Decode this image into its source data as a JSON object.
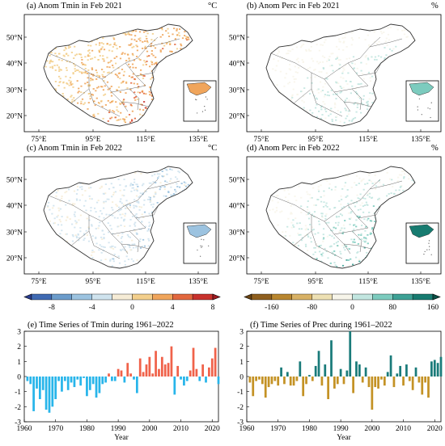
{
  "maps": [
    {
      "id": "a",
      "title": "(a) Anom Tmin in Feb 2021",
      "unit": "°C",
      "palette": "temp",
      "intensity": 0.75
    },
    {
      "id": "b",
      "title": "(b) Anom Perc in Feb 2021",
      "unit": "%",
      "palette": "prec",
      "intensity": 0.35
    },
    {
      "id": "c",
      "title": "(c) Anom Tmin in Feb 2022",
      "unit": "°C",
      "palette": "temp",
      "intensity": -0.2
    },
    {
      "id": "d",
      "title": "(d) Anom Perc in Feb 2022",
      "unit": "%",
      "palette": "prec",
      "intensity": 0.7
    }
  ],
  "map_axes": {
    "lat_ticks": [
      "50°N",
      "40°N",
      "30°N",
      "20°N"
    ],
    "lon_ticks": [
      "75°E",
      "95°E",
      "115°E",
      "135°E"
    ]
  },
  "colorbars": [
    {
      "id": "temp",
      "ticks": [
        "-8",
        "-4",
        "0",
        "4",
        "8"
      ],
      "colors": [
        "#2a3d8f",
        "#3f6ab3",
        "#6b9ccb",
        "#9cc3e0",
        "#cfe3ee",
        "#f6ecd6",
        "#f3cf8c",
        "#f0a55b",
        "#e2673e",
        "#c8312c",
        "#9e1b21"
      ]
    },
    {
      "id": "prec",
      "ticks": [
        "-160",
        "-80",
        "0",
        "80",
        "160"
      ],
      "colors": [
        "#6b4413",
        "#8f5f1e",
        "#b8862f",
        "#d8b165",
        "#ede0b3",
        "#f7f5ea",
        "#c2e6e0",
        "#7ccbbe",
        "#3da195",
        "#177b70",
        "#0b4f45"
      ]
    }
  ],
  "chart_data": [
    {
      "type": "bar",
      "title": "(e) Time Series of Tmin during 1961–2022",
      "xlabel": "Year",
      "ylabel": "",
      "ylim": [
        -3,
        3
      ],
      "xlim": [
        1960,
        2022
      ],
      "xticks": [
        1960,
        1970,
        1980,
        1990,
        2000,
        2010,
        2020
      ],
      "yticks": [
        -3,
        -2,
        -1,
        0,
        1,
        2,
        3
      ],
      "pos_color": "#f0624a",
      "neg_color": "#28b5ea",
      "x": [
        1961,
        1962,
        1963,
        1964,
        1965,
        1966,
        1967,
        1968,
        1969,
        1970,
        1971,
        1972,
        1973,
        1974,
        1975,
        1976,
        1977,
        1978,
        1979,
        1980,
        1981,
        1982,
        1983,
        1984,
        1985,
        1986,
        1987,
        1988,
        1989,
        1990,
        1991,
        1992,
        1993,
        1994,
        1995,
        1996,
        1997,
        1998,
        1999,
        2000,
        2001,
        2002,
        2003,
        2004,
        2005,
        2006,
        2007,
        2008,
        2009,
        2010,
        2011,
        2012,
        2013,
        2014,
        2015,
        2016,
        2017,
        2018,
        2019,
        2020,
        2021,
        2022
      ],
      "values": [
        -0.3,
        -0.5,
        -2.3,
        -0.8,
        -1.5,
        -0.9,
        -2.2,
        -2.4,
        -2.0,
        -1.5,
        -0.3,
        -1.0,
        -0.3,
        -0.9,
        -0.4,
        -0.7,
        -0.2,
        -0.6,
        -0.1,
        -1.3,
        -0.9,
        -0.5,
        -1.4,
        -1.1,
        -0.5,
        -0.4,
        0.2,
        -0.3,
        -0.3,
        0.5,
        0.4,
        -0.4,
        0.9,
        0.2,
        -0.2,
        -1.1,
        1.2,
        0.3,
        0.8,
        1.3,
        0.2,
        1.7,
        0.5,
        1.3,
        0.8,
        0.9,
        2.0,
        -1.2,
        0.7,
        -0.2,
        -0.6,
        -0.3,
        0.4,
        1.9,
        0.5,
        -0.3,
        0.8,
        -0.4,
        0.6,
        1.2,
        1.9,
        -0.5
      ]
    },
    {
      "type": "bar",
      "title": "(f) Time Series of Prec during 1961–2022",
      "xlabel": "Year",
      "ylabel": "",
      "ylim": [
        -3,
        3
      ],
      "xlim": [
        1960,
        2022
      ],
      "xticks": [
        1960,
        1970,
        1980,
        1990,
        2000,
        2010,
        2020
      ],
      "yticks": [
        -3,
        -2,
        -1,
        0,
        1,
        2,
        3
      ],
      "pos_color": "#1a7b7a",
      "neg_color": "#c49225",
      "x": [
        1961,
        1962,
        1963,
        1964,
        1965,
        1966,
        1967,
        1968,
        1969,
        1970,
        1971,
        1972,
        1973,
        1974,
        1975,
        1976,
        1977,
        1978,
        1979,
        1980,
        1981,
        1982,
        1983,
        1984,
        1985,
        1986,
        1987,
        1988,
        1989,
        1990,
        1991,
        1992,
        1993,
        1994,
        1995,
        1996,
        1997,
        1998,
        1999,
        2000,
        2001,
        2002,
        2003,
        2004,
        2005,
        2006,
        2007,
        2008,
        2009,
        2010,
        2011,
        2012,
        2013,
        2014,
        2015,
        2016,
        2017,
        2018,
        2019,
        2020,
        2021,
        2022
      ],
      "values": [
        -0.4,
        -1.3,
        -0.3,
        -0.2,
        -0.5,
        -1.4,
        -0.7,
        -0.5,
        -0.3,
        -0.6,
        0.6,
        -0.5,
        0.3,
        -0.6,
        -0.6,
        -0.3,
        1.0,
        -1.3,
        -0.5,
        0.1,
        -0.3,
        0.7,
        1.7,
        -0.6,
        0.8,
        -1.5,
        2.4,
        -0.8,
        -0.5,
        0.5,
        -0.5,
        0.4,
        3.0,
        -1.1,
        1.0,
        0.8,
        -0.4,
        0.6,
        -0.7,
        -2.2,
        -0.7,
        -0.8,
        -0.2,
        -0.6,
        0.3,
        1.4,
        -0.7,
        0.2,
        0.7,
        -0.6,
        0.8,
        -0.3,
        -0.9,
        0.6,
        -0.4,
        -1.2,
        -0.4,
        -1.4,
        1.0,
        1.1,
        0.9,
        1.3
      ]
    }
  ]
}
